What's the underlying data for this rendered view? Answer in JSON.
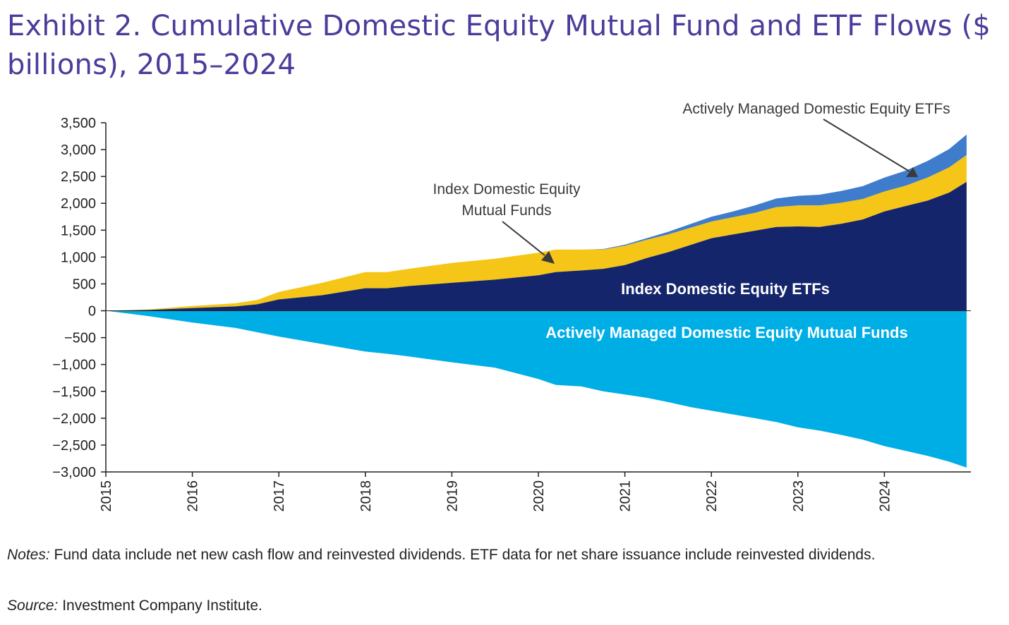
{
  "title": "Exhibit 2. Cumulative Domestic Equity Mutual Fund and ETF Flows ($ billions), 2015–2024",
  "notes_lead": "Notes:",
  "notes_text": " Fund data include net new cash flow and reinvested dividends. ETF data for net share issuance include reinvested dividends.",
  "source_lead": "Source:",
  "source_text": " Investment Company Institute.",
  "colors": {
    "index_etf": "#14256b",
    "index_mf": "#f5c518",
    "active_etf": "#3f7ccc",
    "active_mf": "#00aee6",
    "title": "#4a3c9a",
    "annotation": "#3a3a3a"
  },
  "chart_data": {
    "type": "area",
    "title": "Exhibit 2. Cumulative Domestic Equity Mutual Fund and ETF Flows ($ billions), 2015–2024",
    "xlabel": "",
    "ylabel": "",
    "xlim": [
      2015,
      2025
    ],
    "ylim": [
      -3000,
      3500
    ],
    "yticks": [
      3500,
      3000,
      2500,
      2000,
      1500,
      1000,
      500,
      0,
      -500,
      -1000,
      -1500,
      -2000,
      -2500,
      -3000
    ],
    "ytick_labels": [
      "3,500",
      "3,000",
      "2,500",
      "2,000",
      "1,500",
      "1,000",
      "500",
      "0",
      "−500",
      "−1,000",
      "−1,500",
      "−2,000",
      "−2,500",
      "−3,000"
    ],
    "xticks": [
      2015,
      2016,
      2017,
      2018,
      2019,
      2020,
      2021,
      2022,
      2023,
      2024
    ],
    "xtick_labels": [
      "2015",
      "2016",
      "2017",
      "2018",
      "2019",
      "2020",
      "2021",
      "2022",
      "2023",
      "2024"
    ],
    "grid": false,
    "x": [
      2015.0,
      2015.5,
      2016.0,
      2016.5,
      2016.75,
      2017.0,
      2017.5,
      2018.0,
      2018.25,
      2018.5,
      2019.0,
      2019.5,
      2020.0,
      2020.2,
      2020.5,
      2020.75,
      2021.0,
      2021.25,
      2021.5,
      2021.75,
      2022.0,
      2022.25,
      2022.5,
      2022.75,
      2023.0,
      2023.25,
      2023.5,
      2023.75,
      2024.0,
      2024.25,
      2024.5,
      2024.75,
      2024.95
    ],
    "series": [
      {
        "name": "Index Domestic Equity ETFs",
        "values": [
          0,
          15,
          50,
          80,
          120,
          210,
          290,
          420,
          420,
          460,
          520,
          580,
          660,
          720,
          750,
          780,
          850,
          980,
          1090,
          1220,
          1350,
          1420,
          1490,
          1560,
          1570,
          1560,
          1620,
          1700,
          1850,
          1950,
          2050,
          2200,
          2400
        ]
      },
      {
        "name": "Index Domestic Equity Mutual Funds",
        "values": [
          0,
          10,
          40,
          60,
          80,
          140,
          230,
          300,
          300,
          320,
          370,
          390,
          420,
          420,
          390,
          360,
          360,
          340,
          330,
          320,
          310,
          320,
          330,
          370,
          390,
          400,
          390,
          380,
          370,
          380,
          430,
          470,
          500
        ]
      },
      {
        "name": "Actively Managed Domestic Equity ETFs",
        "values": [
          0,
          0,
          0,
          0,
          0,
          0,
          0,
          0,
          0,
          0,
          0,
          0,
          0,
          0,
          0,
          10,
          20,
          30,
          50,
          70,
          90,
          110,
          140,
          160,
          180,
          200,
          220,
          240,
          260,
          280,
          310,
          340,
          380
        ]
      },
      {
        "name": "Actively Managed Domestic Equity Mutual Funds",
        "values": [
          0,
          -100,
          -220,
          -320,
          -400,
          -480,
          -620,
          -760,
          -800,
          -850,
          -960,
          -1060,
          -1270,
          -1380,
          -1410,
          -1500,
          -1560,
          -1620,
          -1700,
          -1790,
          -1860,
          -1930,
          -2000,
          -2070,
          -2170,
          -2230,
          -2310,
          -2400,
          -2520,
          -2610,
          -2700,
          -2810,
          -2920
        ]
      }
    ],
    "annotations": [
      {
        "text": "Actively Managed Domestic Equity ETFs",
        "style": "callout"
      },
      {
        "text": "Index Domestic Equity",
        "text2": "Mutual Funds",
        "style": "callout"
      },
      {
        "text": "Index Domestic Equity ETFs",
        "style": "inline"
      },
      {
        "text": "Actively Managed Domestic Equity Mutual Funds",
        "style": "inline"
      }
    ]
  }
}
